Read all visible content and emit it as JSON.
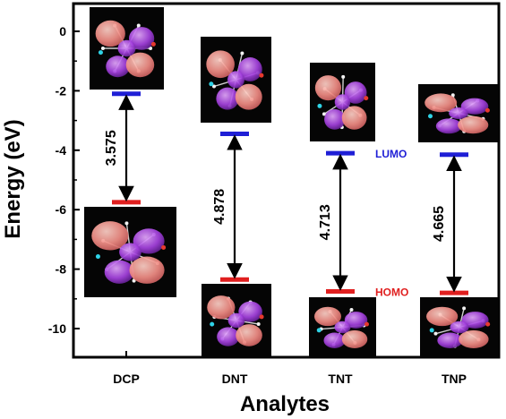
{
  "chart_data": {
    "type": "energy-level diagram",
    "xlabel": "Analytes",
    "ylabel": "Energy (eV)",
    "categories": [
      "DCP",
      "DNT",
      "TNT",
      "TNP"
    ],
    "yticks": [
      0,
      -2,
      -4,
      -6,
      -8,
      -10
    ],
    "ylim": [
      -11,
      1.2
    ],
    "series": [
      {
        "name": "LUMO",
        "color": "#1f1fd6",
        "values": [
          -2.1,
          -3.45,
          -4.1,
          -4.15
        ]
      },
      {
        "name": "HOMO",
        "color": "#e01f1f",
        "values": [
          -5.75,
          -8.35,
          -8.75,
          -8.8
        ]
      }
    ],
    "band_gaps": [
      {
        "category": "DCP",
        "label": "3.575"
      },
      {
        "category": "DNT",
        "label": "4.878"
      },
      {
        "category": "TNT",
        "label": "4.713"
      },
      {
        "category": "TNP",
        "label": "4.665"
      }
    ],
    "orbital_images": {
      "lumo": "molecular orbital isosurface (LUMO)",
      "homo": "molecular orbital isosurface (HOMO)"
    }
  }
}
